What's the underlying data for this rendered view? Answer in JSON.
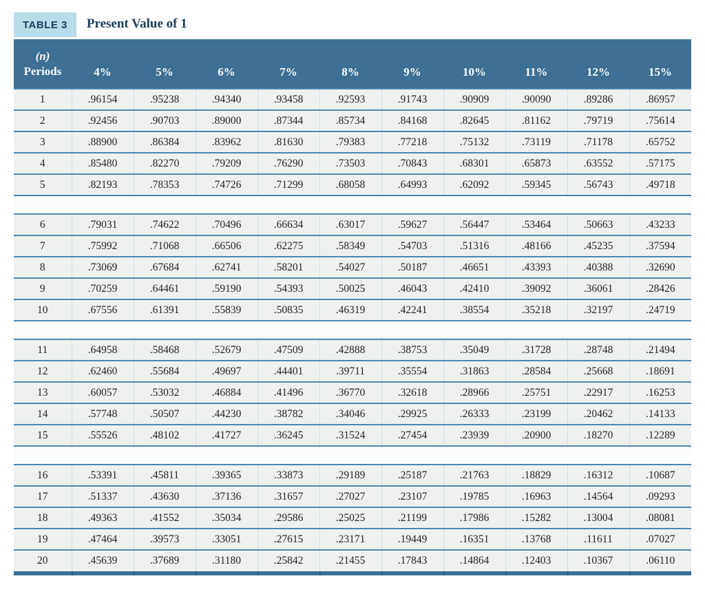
{
  "table": {
    "badge_label": "TABLE 3",
    "title": "Present Value of 1",
    "period_header": {
      "line1": "(n)",
      "line2": "Periods"
    },
    "rate_columns": [
      "4%",
      "5%",
      "6%",
      "7%",
      "8%",
      "9%",
      "10%",
      "11%",
      "12%",
      "15%"
    ],
    "groups": [
      [
        {
          "period": "1",
          "values": [
            ".96154",
            ".95238",
            ".94340",
            ".93458",
            ".92593",
            ".91743",
            ".90909",
            ".90090",
            ".89286",
            ".86957"
          ]
        },
        {
          "period": "2",
          "values": [
            ".92456",
            ".90703",
            ".89000",
            ".87344",
            ".85734",
            ".84168",
            ".82645",
            ".81162",
            ".79719",
            ".75614"
          ]
        },
        {
          "period": "3",
          "values": [
            ".88900",
            ".86384",
            ".83962",
            ".81630",
            ".79383",
            ".77218",
            ".75132",
            ".73119",
            ".71178",
            ".65752"
          ]
        },
        {
          "period": "4",
          "values": [
            ".85480",
            ".82270",
            ".79209",
            ".76290",
            ".73503",
            ".70843",
            ".68301",
            ".65873",
            ".63552",
            ".57175"
          ]
        },
        {
          "period": "5",
          "values": [
            ".82193",
            ".78353",
            ".74726",
            ".71299",
            ".68058",
            ".64993",
            ".62092",
            ".59345",
            ".56743",
            ".49718"
          ]
        }
      ],
      [
        {
          "period": "6",
          "values": [
            ".79031",
            ".74622",
            ".70496",
            ".66634",
            ".63017",
            ".59627",
            ".56447",
            ".53464",
            ".50663",
            ".43233"
          ]
        },
        {
          "period": "7",
          "values": [
            ".75992",
            ".71068",
            ".66506",
            ".62275",
            ".58349",
            ".54703",
            ".51316",
            ".48166",
            ".45235",
            ".37594"
          ]
        },
        {
          "period": "8",
          "values": [
            ".73069",
            ".67684",
            ".62741",
            ".58201",
            ".54027",
            ".50187",
            ".46651",
            ".43393",
            ".40388",
            ".32690"
          ]
        },
        {
          "period": "9",
          "values": [
            ".70259",
            ".64461",
            ".59190",
            ".54393",
            ".50025",
            ".46043",
            ".42410",
            ".39092",
            ".36061",
            ".28426"
          ]
        },
        {
          "period": "10",
          "values": [
            ".67556",
            ".61391",
            ".55839",
            ".50835",
            ".46319",
            ".42241",
            ".38554",
            ".35218",
            ".32197",
            ".24719"
          ]
        }
      ],
      [
        {
          "period": "11",
          "values": [
            ".64958",
            ".58468",
            ".52679",
            ".47509",
            ".42888",
            ".38753",
            ".35049",
            ".31728",
            ".28748",
            ".21494"
          ]
        },
        {
          "period": "12",
          "values": [
            ".62460",
            ".55684",
            ".49697",
            ".44401",
            ".39711",
            ".35554",
            ".31863",
            ".28584",
            ".25668",
            ".18691"
          ]
        },
        {
          "period": "13",
          "values": [
            ".60057",
            ".53032",
            ".46884",
            ".41496",
            ".36770",
            ".32618",
            ".28966",
            ".25751",
            ".22917",
            ".16253"
          ]
        },
        {
          "period": "14",
          "values": [
            ".57748",
            ".50507",
            ".44230",
            ".38782",
            ".34046",
            ".29925",
            ".26333",
            ".23199",
            ".20462",
            ".14133"
          ]
        },
        {
          "period": "15",
          "values": [
            ".55526",
            ".48102",
            ".41727",
            ".36245",
            ".31524",
            ".27454",
            ".23939",
            ".20900",
            ".18270",
            ".12289"
          ]
        }
      ],
      [
        {
          "period": "16",
          "values": [
            ".53391",
            ".45811",
            ".39365",
            ".33873",
            ".29189",
            ".25187",
            ".21763",
            ".18829",
            ".16312",
            ".10687"
          ]
        },
        {
          "period": "17",
          "values": [
            ".51337",
            ".43630",
            ".37136",
            ".31657",
            ".27027",
            ".23107",
            ".19785",
            ".16963",
            ".14564",
            ".09293"
          ]
        },
        {
          "period": "18",
          "values": [
            ".49363",
            ".41552",
            ".35034",
            ".29586",
            ".25025",
            ".21199",
            ".17986",
            ".15282",
            ".13004",
            ".08081"
          ]
        },
        {
          "period": "19",
          "values": [
            ".47464",
            ".39573",
            ".33051",
            ".27615",
            ".23171",
            ".19449",
            ".16351",
            ".13768",
            ".11611",
            ".07027"
          ]
        },
        {
          "period": "20",
          "values": [
            ".45639",
            ".37689",
            ".31180",
            ".25842",
            ".21455",
            ".17843",
            ".14864",
            ".12403",
            ".10367",
            ".06110"
          ]
        }
      ]
    ],
    "colors": {
      "header_bg": "#3d7094",
      "badge_bg": "#b9dce9",
      "title_text": "#1d3e5c",
      "line": "#4d85ad",
      "col_line": "#cfdde7",
      "row_bg": "#eff1f1",
      "spacer_bg": "#fbfdfd",
      "bar_notch": "#2d5878",
      "text": "#242424"
    }
  }
}
